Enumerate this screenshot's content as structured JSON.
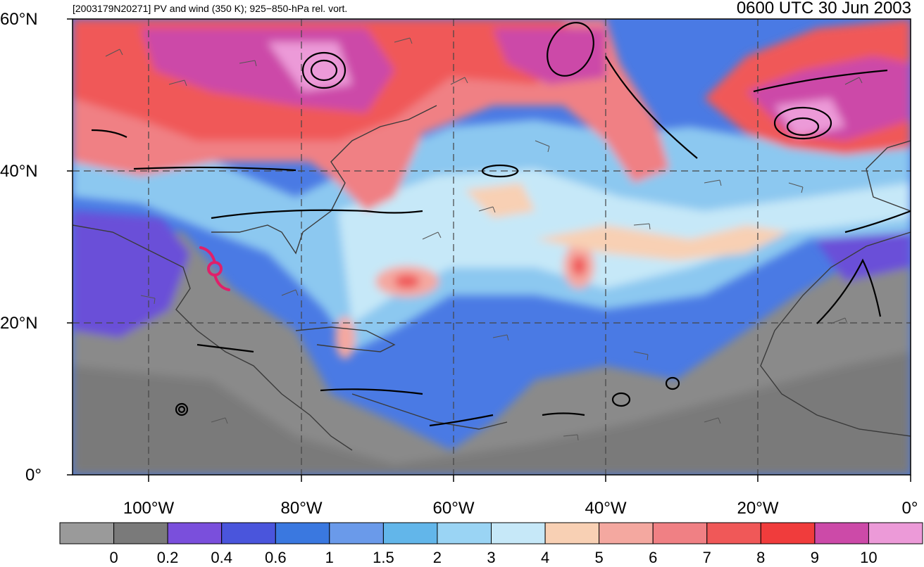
{
  "header": {
    "left_title": "[2003179N20271] PV and wind (350 K); 925−850-hPa rel. vort.",
    "right_title": "0600 UTC 30 Jun 2003"
  },
  "lat_ticks": [
    "60°N",
    "40°N",
    "20°N",
    "0°"
  ],
  "lon_ticks": [
    "100°W",
    "80°W",
    "60°W",
    "40°W",
    "20°W",
    "0°"
  ],
  "colorbar": {
    "labels": [
      "0",
      "0.2",
      "0.4",
      "0.6",
      "1",
      "1.5",
      "2",
      "3",
      "4",
      "5",
      "6",
      "7",
      "8",
      "9",
      "10"
    ],
    "colors": [
      "#9a9a9a",
      "#7a7a7a",
      "#7a4fdc",
      "#4a55dc",
      "#3a78e0",
      "#6a9aea",
      "#62b6ea",
      "#9ad4f4",
      "#c6e8f8",
      "#f8d0b4",
      "#f4a8a0",
      "#f08084",
      "#f05858",
      "#f03c3c",
      "#cc4aa8",
      "#ec9ad8"
    ]
  },
  "storm_marker": {
    "name": "hurricane-symbol",
    "color": "#e0206a"
  },
  "colors": {
    "grid": "#444444",
    "contour": "#000000",
    "coast": "#3a3a3a"
  }
}
